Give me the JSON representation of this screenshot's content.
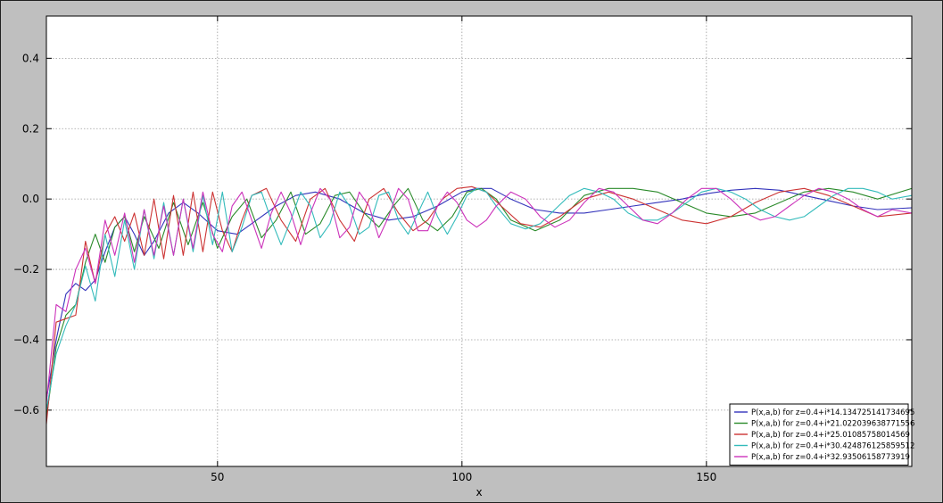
{
  "chart_data": {
    "type": "line",
    "title": "",
    "xlabel": "x",
    "ylabel": "",
    "xlim": [
      15,
      192
    ],
    "ylim": [
      -0.76,
      0.52
    ],
    "xticks": [
      50,
      100,
      150
    ],
    "xtick_labels": [
      "50",
      "100",
      "150"
    ],
    "yticks": [
      -0.6,
      -0.4,
      -0.2,
      0.0,
      0.2,
      0.4
    ],
    "ytick_labels": [
      "−0.6",
      "−0.4",
      "−0.2",
      "0.0",
      "0.2",
      "0.4"
    ],
    "grid": true,
    "legend_position": "lower-right",
    "series": [
      {
        "name": "P(x,a,b) for z=0.4+i*14.134725141734695",
        "color": "#3333bb",
        "x": [
          15,
          17,
          19,
          21,
          23,
          25,
          27,
          29,
          31,
          33,
          35,
          37,
          40,
          43,
          46,
          50,
          54,
          58,
          62,
          66,
          70,
          75,
          80,
          85,
          90,
          95,
          100,
          103,
          106,
          110,
          115,
          120,
          125,
          130,
          135,
          140,
          145,
          150,
          155,
          160,
          165,
          170,
          175,
          180,
          185,
          192
        ],
        "y": [
          -0.57,
          -0.4,
          -0.27,
          -0.24,
          -0.26,
          -0.23,
          -0.15,
          -0.08,
          -0.05,
          -0.1,
          -0.16,
          -0.12,
          -0.04,
          -0.01,
          -0.04,
          -0.09,
          -0.1,
          -0.06,
          -0.02,
          0.01,
          0.02,
          0.0,
          -0.04,
          -0.06,
          -0.05,
          -0.02,
          0.02,
          0.03,
          0.03,
          0.0,
          -0.03,
          -0.04,
          -0.04,
          -0.03,
          -0.02,
          -0.01,
          0.0,
          0.015,
          0.025,
          0.03,
          0.025,
          0.01,
          -0.005,
          -0.02,
          -0.03,
          -0.025
        ]
      },
      {
        "name": "P(x,a,b) for z=0.4+i*21.022039638771556",
        "color": "#2a8a2a",
        "x": [
          15,
          17,
          19,
          21,
          23,
          25,
          27,
          29,
          31,
          33,
          35,
          38,
          41,
          44,
          47,
          50,
          53,
          56,
          59,
          62,
          65,
          68,
          71,
          74,
          77,
          80,
          83,
          86,
          89,
          92,
          95,
          98,
          101,
          104,
          107,
          110,
          115,
          120,
          125,
          130,
          135,
          140,
          145,
          150,
          155,
          160,
          165,
          170,
          175,
          180,
          185,
          192
        ],
        "y": [
          -0.62,
          -0.42,
          -0.33,
          -0.3,
          -0.18,
          -0.1,
          -0.18,
          -0.08,
          -0.05,
          -0.15,
          -0.05,
          -0.14,
          -0.01,
          -0.13,
          -0.01,
          -0.14,
          -0.05,
          0.0,
          -0.11,
          -0.06,
          0.02,
          -0.1,
          -0.07,
          0.01,
          0.02,
          -0.04,
          -0.08,
          -0.02,
          0.03,
          -0.06,
          -0.09,
          -0.05,
          0.02,
          0.03,
          0.0,
          -0.06,
          -0.09,
          -0.06,
          0.01,
          0.03,
          0.03,
          0.02,
          -0.01,
          -0.04,
          -0.05,
          -0.04,
          -0.01,
          0.02,
          0.03,
          0.02,
          0.0,
          0.03
        ]
      },
      {
        "name": "P(x,a,b) for z=0.4+i*25.01085758014569",
        "color": "#cc3333",
        "x": [
          15,
          17,
          19,
          21,
          23,
          25,
          27,
          29,
          31,
          33,
          35,
          37,
          39,
          41,
          43,
          45,
          47,
          49,
          51,
          53,
          55,
          57,
          60,
          63,
          66,
          69,
          72,
          75,
          78,
          81,
          84,
          87,
          90,
          93,
          96,
          99,
          102,
          105,
          108,
          112,
          116,
          120,
          125,
          130,
          135,
          140,
          145,
          150,
          155,
          160,
          165,
          170,
          175,
          180,
          185,
          192
        ],
        "y": [
          -0.64,
          -0.35,
          -0.34,
          -0.33,
          -0.12,
          -0.24,
          -0.1,
          -0.05,
          -0.12,
          -0.04,
          -0.16,
          0.0,
          -0.17,
          0.01,
          -0.16,
          0.02,
          -0.15,
          0.02,
          -0.09,
          -0.15,
          -0.06,
          0.01,
          0.03,
          -0.06,
          -0.12,
          0.0,
          0.03,
          -0.06,
          -0.12,
          0.0,
          0.03,
          -0.04,
          -0.09,
          -0.06,
          0.0,
          0.03,
          0.035,
          0.02,
          -0.02,
          -0.07,
          -0.08,
          -0.05,
          0.0,
          0.02,
          0.0,
          -0.03,
          -0.06,
          -0.07,
          -0.05,
          -0.01,
          0.02,
          0.03,
          0.01,
          -0.02,
          -0.05,
          -0.04
        ]
      },
      {
        "name": "P(x,a,b) for z=0.4+i*30.424876125859512",
        "color": "#33bbbb",
        "x": [
          15,
          17,
          19,
          21,
          23,
          25,
          27,
          29,
          31,
          33,
          35,
          37,
          39,
          41,
          43,
          45,
          47,
          49,
          51,
          53,
          55,
          57,
          59,
          61,
          63,
          65,
          67,
          69,
          71,
          73,
          75,
          77,
          79,
          81,
          83,
          85,
          87,
          89,
          91,
          93,
          95,
          97,
          99,
          101,
          103,
          105,
          107,
          110,
          113,
          116,
          119,
          122,
          125,
          128,
          131,
          134,
          137,
          140,
          143,
          146,
          149,
          152,
          155,
          158,
          161,
          164,
          167,
          170,
          173,
          176,
          179,
          182,
          185,
          188,
          192
        ],
        "y": [
          -0.6,
          -0.44,
          -0.36,
          -0.3,
          -0.19,
          -0.29,
          -0.1,
          -0.22,
          -0.06,
          -0.2,
          -0.03,
          -0.17,
          -0.01,
          -0.16,
          0.0,
          -0.15,
          0.01,
          -0.13,
          0.02,
          -0.15,
          -0.08,
          0.01,
          0.02,
          -0.06,
          -0.13,
          -0.06,
          0.02,
          -0.02,
          -0.11,
          -0.07,
          0.02,
          -0.02,
          -0.1,
          -0.08,
          0.01,
          0.02,
          -0.06,
          -0.1,
          -0.04,
          0.02,
          -0.05,
          -0.1,
          -0.05,
          0.01,
          0.03,
          0.02,
          -0.02,
          -0.07,
          -0.085,
          -0.07,
          -0.03,
          0.01,
          0.03,
          0.02,
          0.0,
          -0.04,
          -0.06,
          -0.06,
          -0.04,
          -0.01,
          0.02,
          0.03,
          0.02,
          0.0,
          -0.03,
          -0.05,
          -0.06,
          -0.05,
          -0.02,
          0.01,
          0.03,
          0.03,
          0.02,
          0.0,
          0.01
        ]
      },
      {
        "name": "P(x,a,b) for z=0.4+i*32.93506158773919",
        "color": "#cc33bb",
        "x": [
          15,
          17,
          19,
          21,
          23,
          25,
          27,
          29,
          31,
          33,
          35,
          37,
          39,
          41,
          43,
          45,
          47,
          49,
          51,
          53,
          55,
          57,
          59,
          61,
          63,
          65,
          67,
          69,
          71,
          73,
          75,
          77,
          79,
          81,
          83,
          85,
          87,
          89,
          91,
          93,
          95,
          97,
          99,
          101,
          103,
          105,
          107,
          110,
          113,
          116,
          119,
          122,
          125,
          128,
          131,
          134,
          137,
          140,
          143,
          146,
          149,
          152,
          155,
          158,
          161,
          164,
          167,
          170,
          173,
          176,
          179,
          182,
          185,
          188,
          192
        ],
        "y": [
          -0.58,
          -0.3,
          -0.32,
          -0.2,
          -0.14,
          -0.24,
          -0.06,
          -0.16,
          -0.04,
          -0.18,
          -0.03,
          -0.16,
          -0.02,
          -0.16,
          0.0,
          -0.14,
          0.02,
          -0.1,
          -0.15,
          -0.02,
          0.02,
          -0.06,
          -0.14,
          -0.04,
          0.02,
          -0.04,
          -0.13,
          -0.04,
          0.03,
          0.0,
          -0.11,
          -0.08,
          0.02,
          -0.02,
          -0.11,
          -0.05,
          0.03,
          0.0,
          -0.09,
          -0.09,
          -0.02,
          0.02,
          -0.01,
          -0.06,
          -0.08,
          -0.06,
          -0.02,
          0.02,
          0.0,
          -0.05,
          -0.08,
          -0.06,
          -0.01,
          0.03,
          0.02,
          -0.02,
          -0.06,
          -0.07,
          -0.04,
          0.0,
          0.03,
          0.03,
          0.0,
          -0.04,
          -0.06,
          -0.05,
          -0.02,
          0.01,
          0.03,
          0.02,
          0.0,
          -0.03,
          -0.05,
          -0.03,
          -0.04
        ]
      }
    ]
  }
}
